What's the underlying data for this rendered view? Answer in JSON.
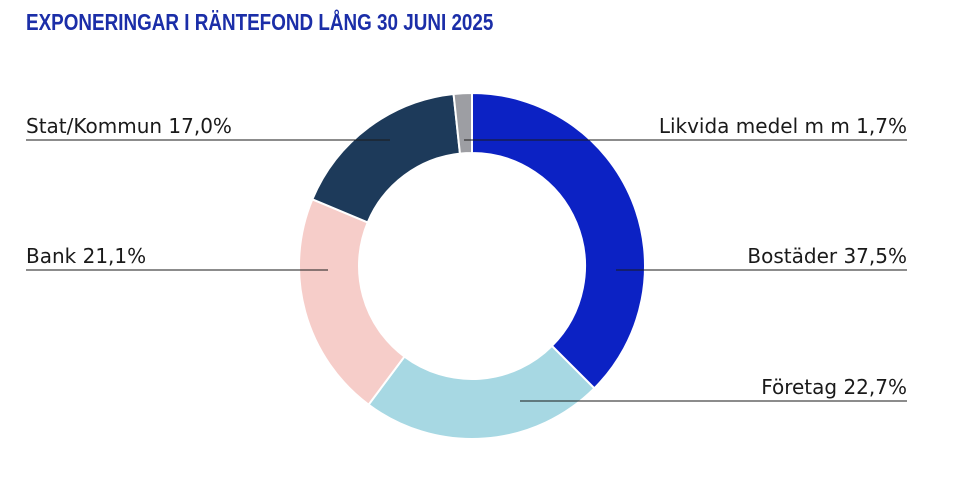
{
  "title": "EXPONERINGAR I RÄNTEFOND LÅNG 30 JUNI 2025",
  "chart_data": {
    "type": "pie",
    "variant": "donut",
    "title": "EXPONERINGAR I RÄNTEFOND LÅNG 30 JUNI 2025",
    "legend": "none",
    "slices": [
      {
        "label": "Bostäder",
        "value": 37.5,
        "display": "Bostäder 37,5%",
        "color": "#0c22c4"
      },
      {
        "label": "Företag",
        "value": 22.7,
        "display": "Företag 22,7%",
        "color": "#a7d8e3"
      },
      {
        "label": "Bank",
        "value": 21.1,
        "display": "Bank 21,1%",
        "color": "#f6cdc9"
      },
      {
        "label": "Stat/Kommun",
        "value": 17.0,
        "display": "Stat/Kommun 17,0%",
        "color": "#1d3a5a"
      },
      {
        "label": "Likvida medel m m",
        "value": 1.7,
        "display": "Likvida medel m m 1,7%",
        "color": "#9d9ea3"
      }
    ]
  }
}
